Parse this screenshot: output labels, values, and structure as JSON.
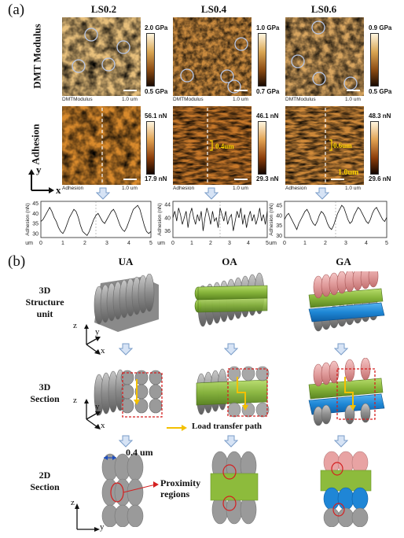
{
  "panel_a": {
    "letter": "(a)",
    "columns": [
      "LS0.2",
      "LS0.4",
      "LS0.6"
    ],
    "row_labels": {
      "modulus": "DMT Modulus",
      "adhesion": "Adhesion"
    },
    "axes_labels": {
      "x": "x",
      "y": "y"
    },
    "modulus_maps": [
      {
        "caption": "DMTModulus",
        "scale": "1.0 um",
        "cb_max": "2.0 GPa",
        "cb_min": "0.5 GPa"
      },
      {
        "caption": "DMTModulus",
        "scale": "1.0 um",
        "cb_max": "1.0 GPa",
        "cb_min": "0.7 GPa"
      },
      {
        "caption": "DMTModulus",
        "scale": "1.0 um",
        "cb_max": "0.9 GPa",
        "cb_min": "0.5 GPa"
      }
    ],
    "adhesion_maps": [
      {
        "caption": "Adhesion",
        "scale": "1.0 um",
        "cb_max": "56.1 nN",
        "cb_min": "17.9 nN",
        "note": ""
      },
      {
        "caption": "Adhesion",
        "scale": "1.0 um",
        "cb_max": "46.1 nN",
        "cb_min": "29.3 nN",
        "note": "0.4um"
      },
      {
        "caption": "Adhesion",
        "scale": "1.0 um",
        "cb_max": "48.3 nN",
        "cb_min": "29.6 nN",
        "note": "0.6um",
        "note2": "1.0um"
      }
    ]
  },
  "profiles": {
    "ylabel": "Adhesion (nN)",
    "xunit": "um",
    "plots": [
      {
        "yticks": [
          "45",
          "40",
          "35",
          "30"
        ],
        "ymin": 28,
        "ymax": 46,
        "xticks": [
          "0",
          "1",
          "2",
          "3",
          "4",
          "5"
        ],
        "y": [
          36,
          37,
          39,
          41,
          43,
          41,
          38,
          36,
          33,
          31,
          30,
          32,
          35,
          38,
          40,
          42,
          41,
          38,
          34,
          31,
          30,
          29,
          31,
          34,
          37,
          39,
          40,
          38,
          36,
          35,
          37,
          39,
          41,
          42,
          40,
          37,
          34,
          32,
          31,
          33,
          36,
          39,
          42,
          43,
          44,
          42,
          38,
          34,
          31,
          30,
          31
        ]
      },
      {
        "yticks": [
          "44",
          "40",
          "36"
        ],
        "ymin": 34,
        "ymax": 45,
        "xticks": [
          "0",
          "1",
          "2",
          "3",
          "4",
          "5"
        ],
        "y": [
          40,
          42,
          39,
          43,
          41,
          38,
          40,
          42,
          37,
          41,
          43,
          40,
          38,
          41,
          39,
          42,
          36,
          40,
          43,
          41,
          38,
          42,
          39,
          40,
          37,
          43,
          41,
          39,
          42,
          38,
          40,
          41,
          36,
          39,
          42,
          40,
          43,
          38,
          41,
          37,
          40,
          42,
          39,
          41,
          38,
          40,
          43,
          39,
          41,
          38,
          42
        ]
      },
      {
        "yticks": [
          "45",
          "40",
          "35",
          "30"
        ],
        "ymin": 29,
        "ymax": 47,
        "xticks": [
          "0",
          "1",
          "2",
          "3",
          "4",
          "5"
        ],
        "y": [
          38,
          40,
          41,
          39,
          37,
          35,
          33,
          36,
          38,
          40,
          42,
          43,
          41,
          38,
          36,
          35,
          37,
          40,
          42,
          41,
          39,
          36,
          34,
          33,
          35,
          38,
          41,
          43,
          45,
          44,
          41,
          38,
          36,
          37,
          40,
          42,
          44,
          43,
          41,
          39,
          37,
          36,
          38,
          41,
          43,
          44,
          42,
          40,
          38,
          37,
          39
        ]
      }
    ]
  },
  "panel_b": {
    "letter": "(b)",
    "columns": [
      "UA",
      "OA",
      "GA"
    ],
    "rows": [
      "3D\nStructure\nunit",
      "3D\nSection",
      "2D\nSection"
    ],
    "axes": {
      "z": "z",
      "y": "y",
      "x": "x"
    },
    "load_transfer": "Load transfer path",
    "dimension": "0.4 um",
    "proximity": "Proximity\nregions"
  },
  "colors": {
    "gray": "#9a9a9a",
    "green": "#8dbb3c",
    "pink": "#e8a3a3",
    "blue": "#1f86d6",
    "yellow": "#f3c000",
    "red": "#d42020",
    "arrow": "#c9d9f0"
  }
}
